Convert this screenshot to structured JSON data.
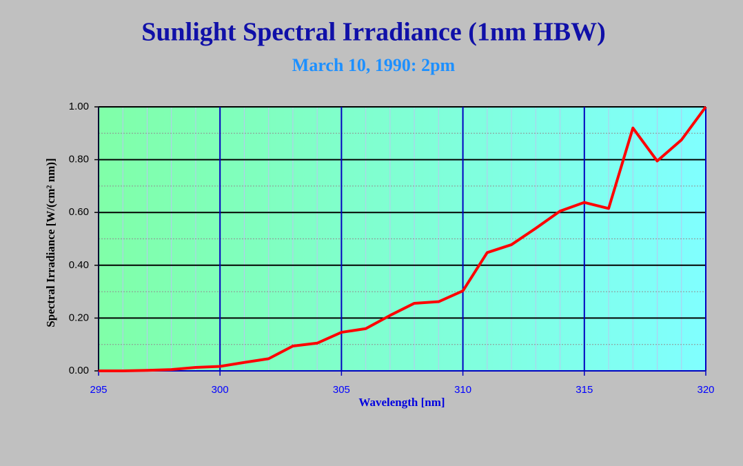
{
  "chart_data": {
    "type": "line",
    "title": "Sunlight Spectral Irradiance (1nm HBW)",
    "subtitle": "March 10, 1990: 2pm",
    "x_label": "Wavelength [nm]",
    "y_label": "Spectral Irradiance [W/(cm² nm)]",
    "x": [
      295,
      296,
      297,
      298,
      299,
      300,
      301,
      302,
      303,
      304,
      305,
      306,
      307,
      308,
      309,
      310,
      311,
      312,
      313,
      314,
      315,
      316,
      317,
      318,
      319,
      320
    ],
    "series": [
      {
        "name": "Spectral Irradiance",
        "color": "#ff0000",
        "values": [
          0.0,
          0.0,
          0.002,
          0.005,
          0.013,
          0.017,
          0.032,
          0.046,
          0.094,
          0.105,
          0.146,
          0.16,
          0.21,
          0.256,
          0.262,
          0.303,
          0.448,
          0.478,
          0.54,
          0.605,
          0.638,
          0.615,
          0.92,
          0.795,
          0.875,
          1.0
        ]
      }
    ],
    "xlim": [
      295,
      320
    ],
    "xticks": [
      295,
      300,
      305,
      310,
      315,
      320
    ],
    "xminorticks": [
      296,
      297,
      298,
      299,
      301,
      302,
      303,
      304,
      306,
      307,
      308,
      309,
      311,
      312,
      313,
      314,
      316,
      317,
      318,
      319
    ],
    "ylim": [
      0,
      1
    ],
    "yticks": [
      {
        "value": 0,
        "label": "0.00"
      },
      {
        "value": 0.2,
        "label": "0.20"
      },
      {
        "value": 0.4,
        "label": "0.40"
      },
      {
        "value": 0.6,
        "label": "0.60"
      },
      {
        "value": 0.8,
        "label": "0.80"
      },
      {
        "value": 1,
        "label": "1.00"
      }
    ],
    "yminorticks": [
      0.1,
      0.3,
      0.5,
      0.7,
      0.9
    ],
    "grid": true
  }
}
